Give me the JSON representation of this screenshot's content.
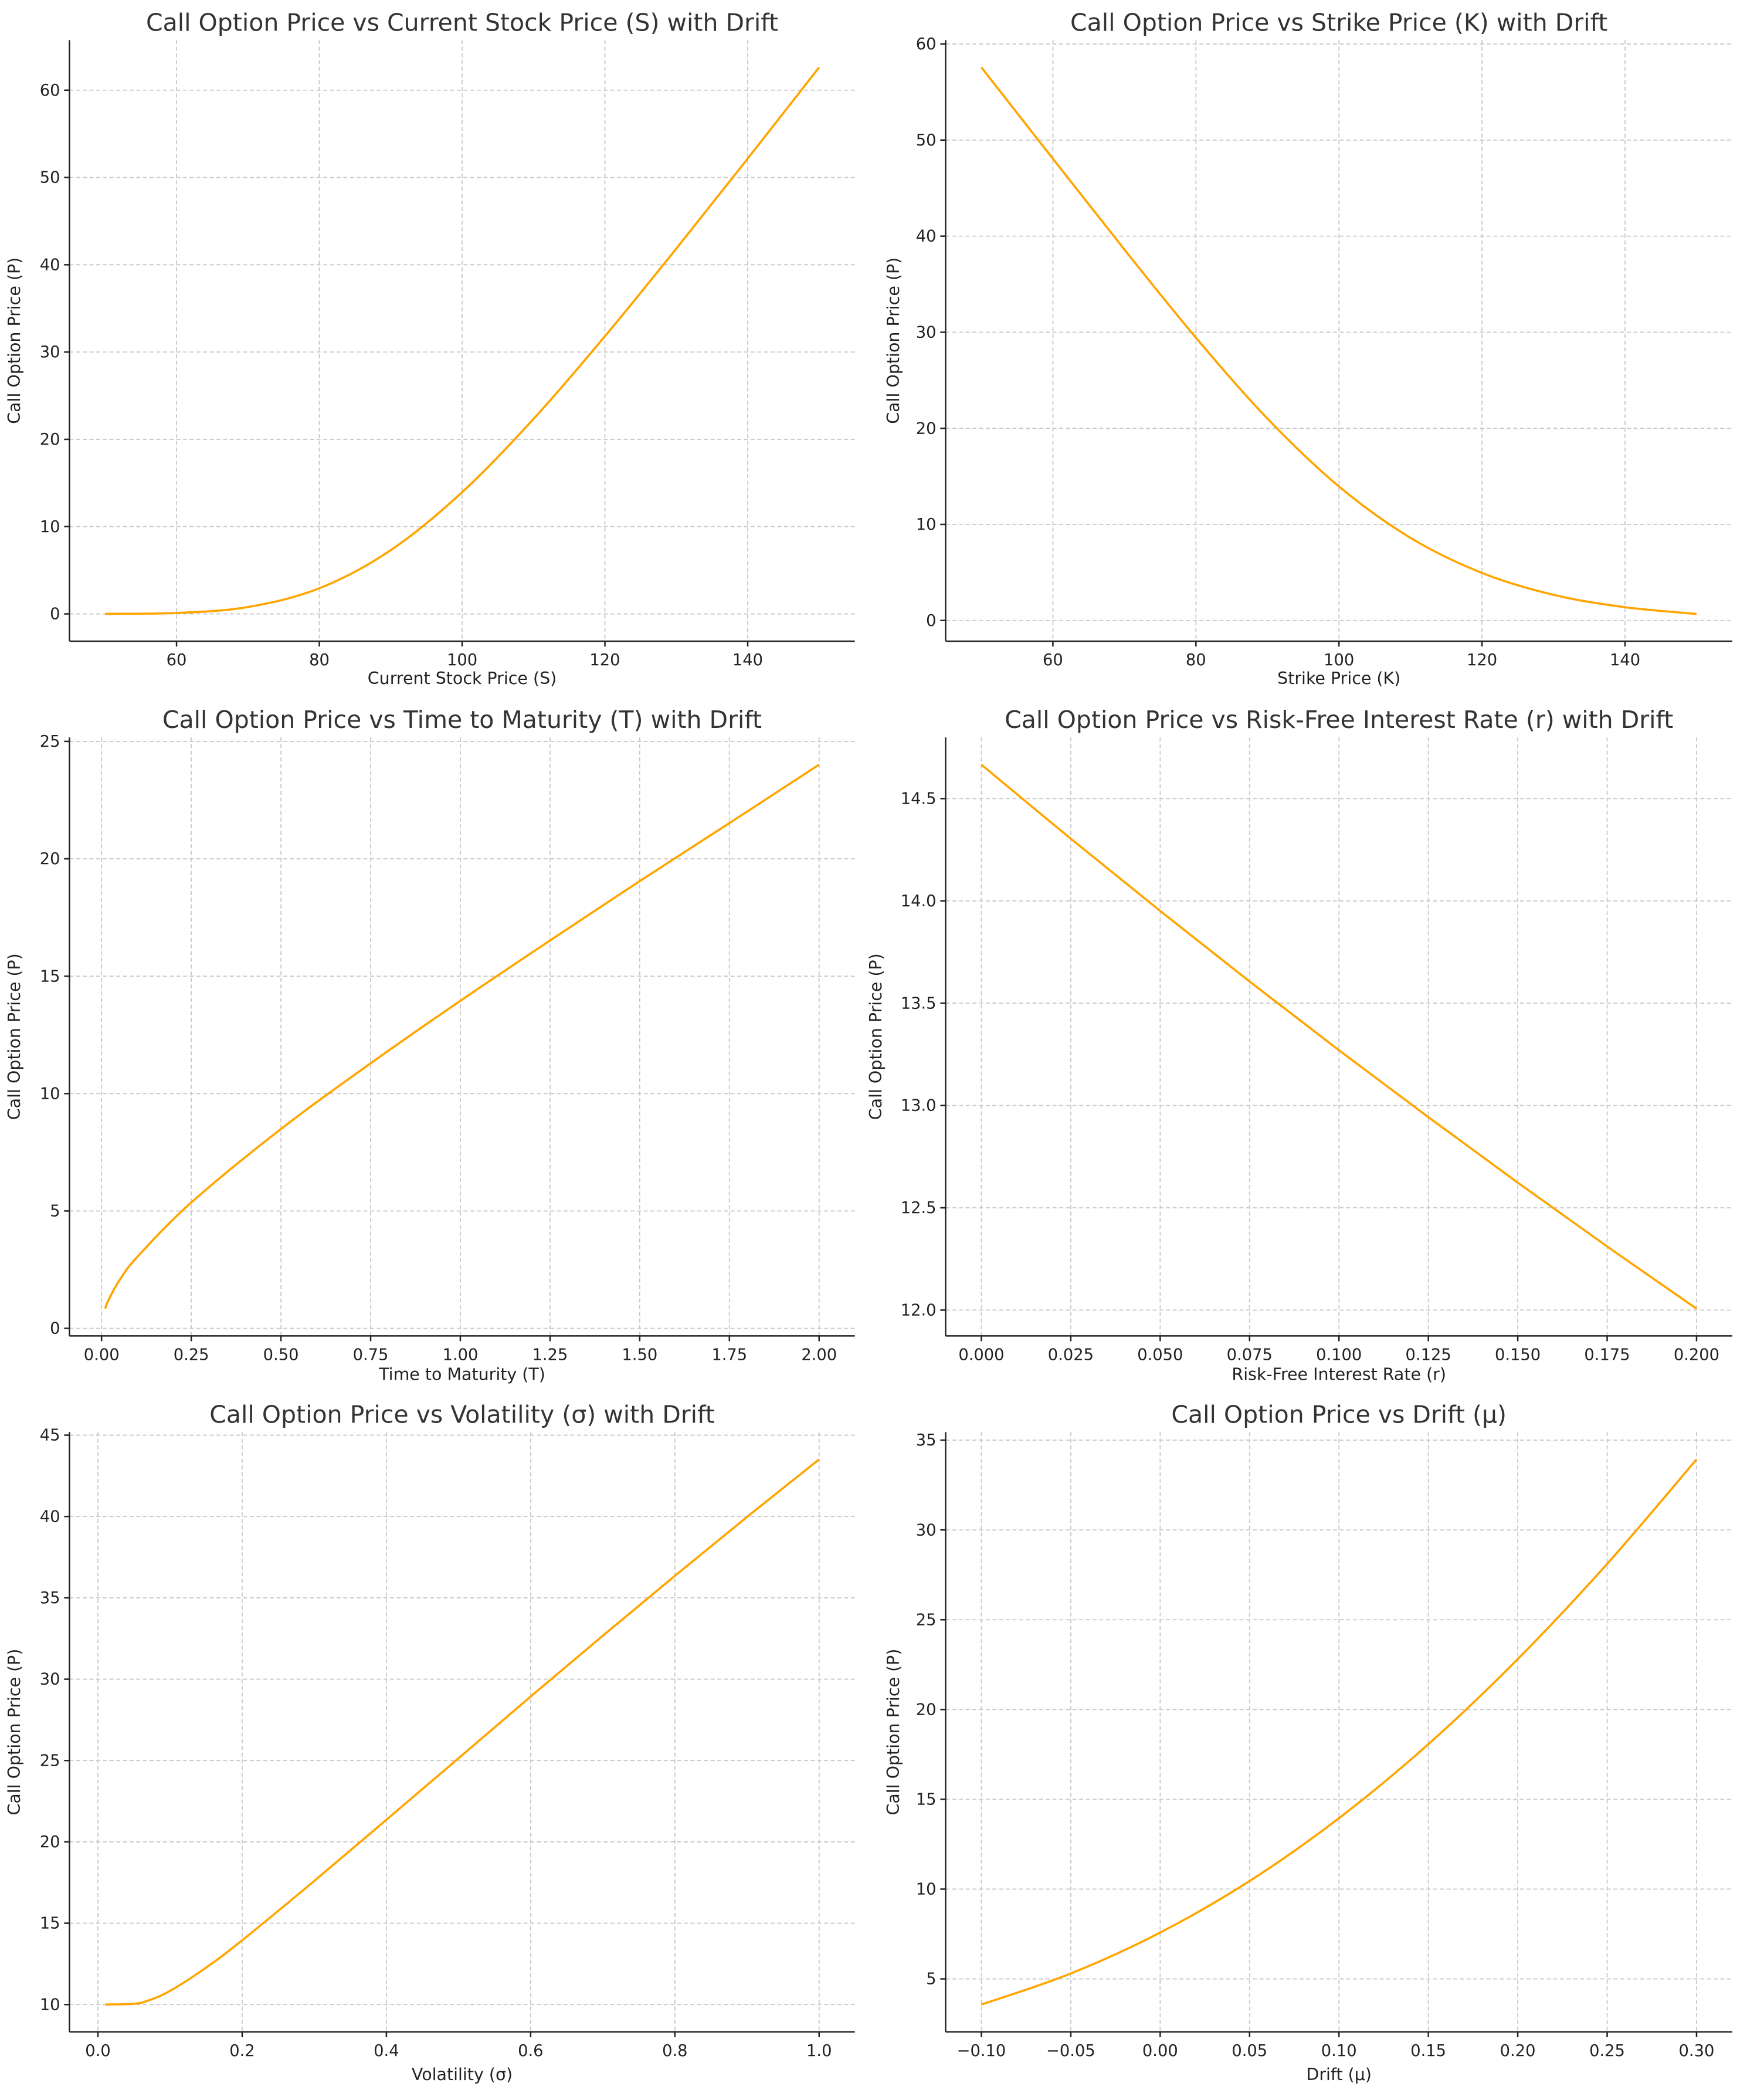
{
  "line_color": "#FFA500",
  "chart_data": [
    {
      "type": "line",
      "title": "Call Option Price vs Current Stock Price (S) with Drift",
      "xlabel": "Current Stock Price (S)",
      "ylabel": "Call Option Price (P)",
      "xlim": [
        45,
        155
      ],
      "ylim": [
        -3.13,
        65.74
      ],
      "grid": true,
      "x_ticks": [
        60,
        80,
        100,
        120,
        140
      ],
      "x_tick_labels": [
        "60",
        "80",
        "100",
        "120",
        "140"
      ],
      "y_ticks": [
        0,
        10,
        20,
        30,
        40,
        50,
        60
      ],
      "y_tick_labels": [
        "0",
        "10",
        "20",
        "30",
        "40",
        "50",
        "60"
      ],
      "x": [
        50,
        60,
        70,
        80,
        90,
        100,
        110,
        120,
        130,
        140,
        150
      ],
      "y": [
        0.01,
        0.11,
        0.79,
        2.94,
        7.3,
        13.95,
        22.34,
        31.81,
        41.85,
        52.17,
        62.61
      ]
    },
    {
      "type": "line",
      "title": "Call Option Price vs Strike Price (K) with Drift",
      "xlabel": "Strike Price (K)",
      "ylabel": "Call Option Price (P)",
      "xlim": [
        45,
        155
      ],
      "ylim": [
        -2.16,
        60.41
      ],
      "grid": true,
      "x_ticks": [
        60,
        80,
        100,
        120,
        140
      ],
      "x_tick_labels": [
        "60",
        "80",
        "100",
        "120",
        "140"
      ],
      "y_ticks": [
        0,
        10,
        20,
        30,
        40,
        50,
        60
      ],
      "y_tick_labels": [
        "0",
        "10",
        "20",
        "30",
        "40",
        "50",
        "60"
      ],
      "x": [
        50,
        60,
        70,
        80,
        90,
        100,
        110,
        120,
        130,
        140,
        150
      ],
      "y": [
        57.57,
        48.06,
        38.61,
        29.43,
        21.01,
        13.95,
        8.6,
        4.95,
        2.67,
        1.38,
        0.68
      ]
    },
    {
      "type": "line",
      "title": "Call Option Price vs Time to Maturity (T) with Drift",
      "xlabel": "Time to Maturity (T)",
      "ylabel": "Call Option Price (P)",
      "xlim": [
        -0.0895,
        2.0995
      ],
      "ylim": [
        -0.32,
        25.17
      ],
      "grid": true,
      "x_ticks": [
        0,
        0.25,
        0.5,
        0.75,
        1,
        1.25,
        1.5,
        1.75,
        2
      ],
      "x_tick_labels": [
        "0.00",
        "0.25",
        "0.50",
        "0.75",
        "1.00",
        "1.25",
        "1.50",
        "1.75",
        "2.00"
      ],
      "y_ticks": [
        0,
        5,
        10,
        15,
        20,
        25
      ],
      "y_tick_labels": [
        "0",
        "5",
        "10",
        "15",
        "20",
        "25"
      ],
      "x": [
        0.01,
        0.02,
        0.05,
        0.1,
        0.25,
        0.5,
        0.75,
        1,
        1.25,
        1.5,
        1.75,
        2
      ],
      "y": [
        0.84,
        1.23,
        2.05,
        3.05,
        5.36,
        8.49,
        11.29,
        13.95,
        16.52,
        19.05,
        21.52,
        24.01
      ]
    },
    {
      "type": "line",
      "title": "Call Option Price vs Risk-Free Interest Rate (r) with Drift",
      "xlabel": "Risk-Free Interest Rate (r)",
      "ylabel": "Call Option Price (P)",
      "xlim": [
        -0.01,
        0.21
      ],
      "ylim": [
        11.874,
        14.799
      ],
      "grid": true,
      "x_ticks": [
        0,
        0.025,
        0.05,
        0.075,
        0.1,
        0.125,
        0.15,
        0.175,
        0.2
      ],
      "x_tick_labels": [
        "0.000",
        "0.025",
        "0.050",
        "0.075",
        "0.100",
        "0.125",
        "0.150",
        "0.175",
        "0.200"
      ],
      "y_ticks": [
        12,
        12.5,
        13,
        13.5,
        14,
        14.5
      ],
      "y_tick_labels": [
        "12.0",
        "12.5",
        "13.0",
        "13.5",
        "14.0",
        "14.5"
      ],
      "x": [
        0,
        0.025,
        0.05,
        0.075,
        0.1,
        0.125,
        0.15,
        0.175,
        0.2
      ],
      "y": [
        14.666,
        14.304,
        13.951,
        13.606,
        13.27,
        12.943,
        12.623,
        12.311,
        12.007
      ]
    },
    {
      "type": "line",
      "title": "Call Option Price vs Volatility (σ) with Drift",
      "xlabel": "Volatility (σ)",
      "ylabel": "Call Option Price (P)",
      "xlim": [
        -0.0395,
        1.0495
      ],
      "ylim": [
        8.32,
        45.19
      ],
      "grid": true,
      "x_ticks": [
        0,
        0.2,
        0.4,
        0.6,
        0.8,
        1.0
      ],
      "x_tick_labels": [
        "0.0",
        "0.2",
        "0.4",
        "0.6",
        "0.8",
        "1.0"
      ],
      "y_ticks": [
        10,
        15,
        20,
        25,
        30,
        35,
        40,
        45
      ],
      "y_tick_labels": [
        "10",
        "15",
        "20",
        "25",
        "30",
        "35",
        "40",
        "45"
      ],
      "x": [
        0.01,
        0.05,
        0.07,
        0.1,
        0.15,
        0.2,
        0.3,
        0.4,
        0.5,
        0.6,
        0.7,
        0.8,
        0.9,
        1.0
      ],
      "y": [
        10.0,
        10.05,
        10.25,
        10.84,
        12.27,
        13.95,
        17.6,
        21.36,
        25.14,
        28.93,
        32.67,
        36.35,
        39.97,
        43.51
      ]
    },
    {
      "type": "line",
      "title": "Call Option Price vs Drift (μ)",
      "xlabel": "Drift (μ)",
      "ylabel": "Call Option Price (P)",
      "xlim": [
        -0.12,
        0.32
      ],
      "ylim": [
        2.05,
        35.45
      ],
      "grid": true,
      "x_ticks": [
        -0.1,
        -0.05,
        0,
        0.05,
        0.1,
        0.15,
        0.2,
        0.25,
        0.3
      ],
      "x_tick_labels": [
        "−0.10",
        "−0.05",
        "0.00",
        "0.05",
        "0.10",
        "0.15",
        "0.20",
        "0.25",
        "0.30"
      ],
      "y_ticks": [
        5,
        10,
        15,
        20,
        25,
        30,
        35
      ],
      "y_tick_labels": [
        "5",
        "10",
        "15",
        "20",
        "25",
        "30",
        "35"
      ],
      "x": [
        -0.1,
        -0.05,
        0,
        0.05,
        0.1,
        0.15,
        0.2,
        0.25,
        0.3
      ],
      "y": [
        3.57,
        5.3,
        7.58,
        10.45,
        13.95,
        18.07,
        22.81,
        28.11,
        33.93
      ]
    }
  ]
}
